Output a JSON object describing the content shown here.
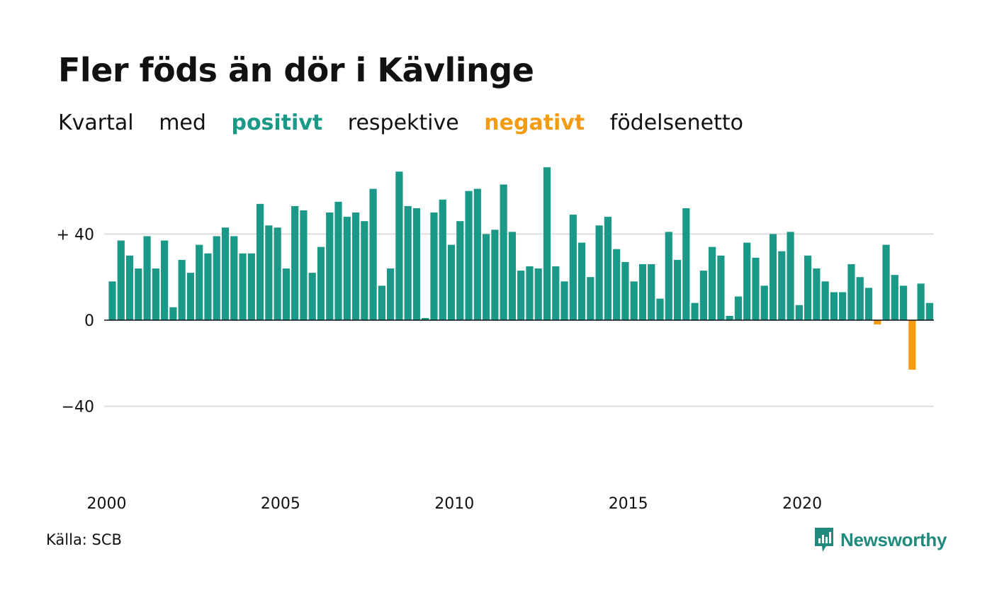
{
  "title": "Fler föds än dör i Kävlinge",
  "subtitle": {
    "w1": "Kvartal",
    "w2": "med",
    "positive": "positivt",
    "w3": "respektive",
    "negative": "negativt",
    "w4": "födelsenetto"
  },
  "source": "Källa: SCB",
  "brand": "Newsworthy",
  "colors": {
    "positive": "#1b9988",
    "negative": "#f39c12",
    "grid": "#dddddd"
  },
  "chart_data": {
    "type": "bar",
    "title": "Fler föds än dör i Kävlinge",
    "xlabel": "",
    "ylabel": "",
    "ylim": [
      -80,
      72
    ],
    "yticks": [
      {
        "value": 40,
        "label": "+ 40"
      },
      {
        "value": 0,
        "label": "0"
      },
      {
        "value": -40,
        "label": "−40"
      }
    ],
    "xticks": [
      "2000",
      "2005",
      "2010",
      "2015",
      "2020"
    ],
    "start_year": 2000,
    "periods_per_year": 4,
    "values": [
      18,
      37,
      30,
      24,
      39,
      24,
      37,
      6,
      28,
      22,
      35,
      31,
      39,
      43,
      39,
      31,
      31,
      54,
      44,
      43,
      24,
      53,
      51,
      22,
      34,
      50,
      55,
      48,
      50,
      46,
      61,
      16,
      24,
      69,
      53,
      52,
      1,
      50,
      56,
      35,
      46,
      60,
      61,
      40,
      42,
      63,
      41,
      23,
      25,
      24,
      71,
      25,
      18,
      49,
      36,
      20,
      44,
      48,
      33,
      27,
      18,
      26,
      26,
      10,
      41,
      28,
      52,
      8,
      23,
      34,
      30,
      2,
      11,
      36,
      29,
      16,
      40,
      32,
      41,
      7,
      30,
      24,
      18,
      13,
      13,
      26,
      20,
      15,
      -2,
      35,
      21,
      16,
      -23,
      17,
      8
    ],
    "grid": true,
    "legend": "none"
  }
}
